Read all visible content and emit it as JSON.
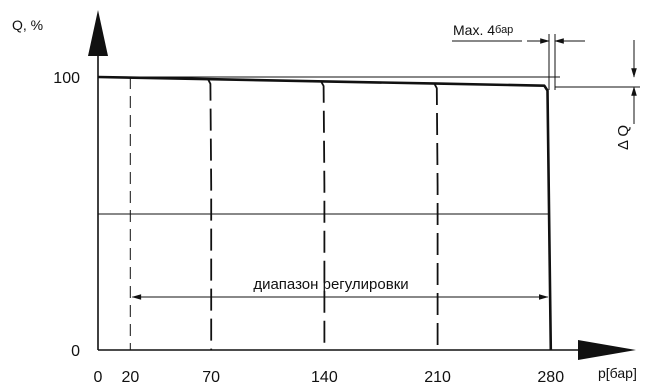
{
  "chart_data": {
    "type": "line",
    "ylabel": "Q, %",
    "xlabel": "p[бар]",
    "x_ticks": [
      0,
      20,
      70,
      140,
      210,
      280
    ],
    "y_ticks": [
      0,
      100
    ],
    "xlim": [
      0,
      280
    ],
    "ylim": [
      0,
      100
    ],
    "reference_line_y": 50,
    "range_label": "диапазон регулировки",
    "range": [
      20,
      280
    ],
    "annotation_max": "Max. 4",
    "annotation_max_unit": "бар",
    "annotation_delta": "Δ Q",
    "series": [
      {
        "style": "solid",
        "x": [
          0,
          70,
          140,
          210,
          276,
          278,
          280
        ],
        "y": [
          100,
          99.2,
          98.4,
          97.6,
          96.8,
          95,
          0
        ]
      },
      {
        "style": "dashed",
        "x": [
          68,
          69.5,
          70,
          70
        ],
        "y": [
          99.2,
          97.5,
          60,
          0
        ]
      },
      {
        "style": "dashed",
        "x": [
          138,
          139.5,
          140,
          140
        ],
        "y": [
          98.4,
          96.7,
          60,
          0
        ]
      },
      {
        "style": "dashed",
        "x": [
          208,
          209.5,
          210,
          210
        ],
        "y": [
          97.6,
          95.9,
          60,
          0
        ]
      },
      {
        "style": "dashed",
        "x": [
          20,
          20
        ],
        "y": [
          100,
          0
        ]
      }
    ]
  }
}
